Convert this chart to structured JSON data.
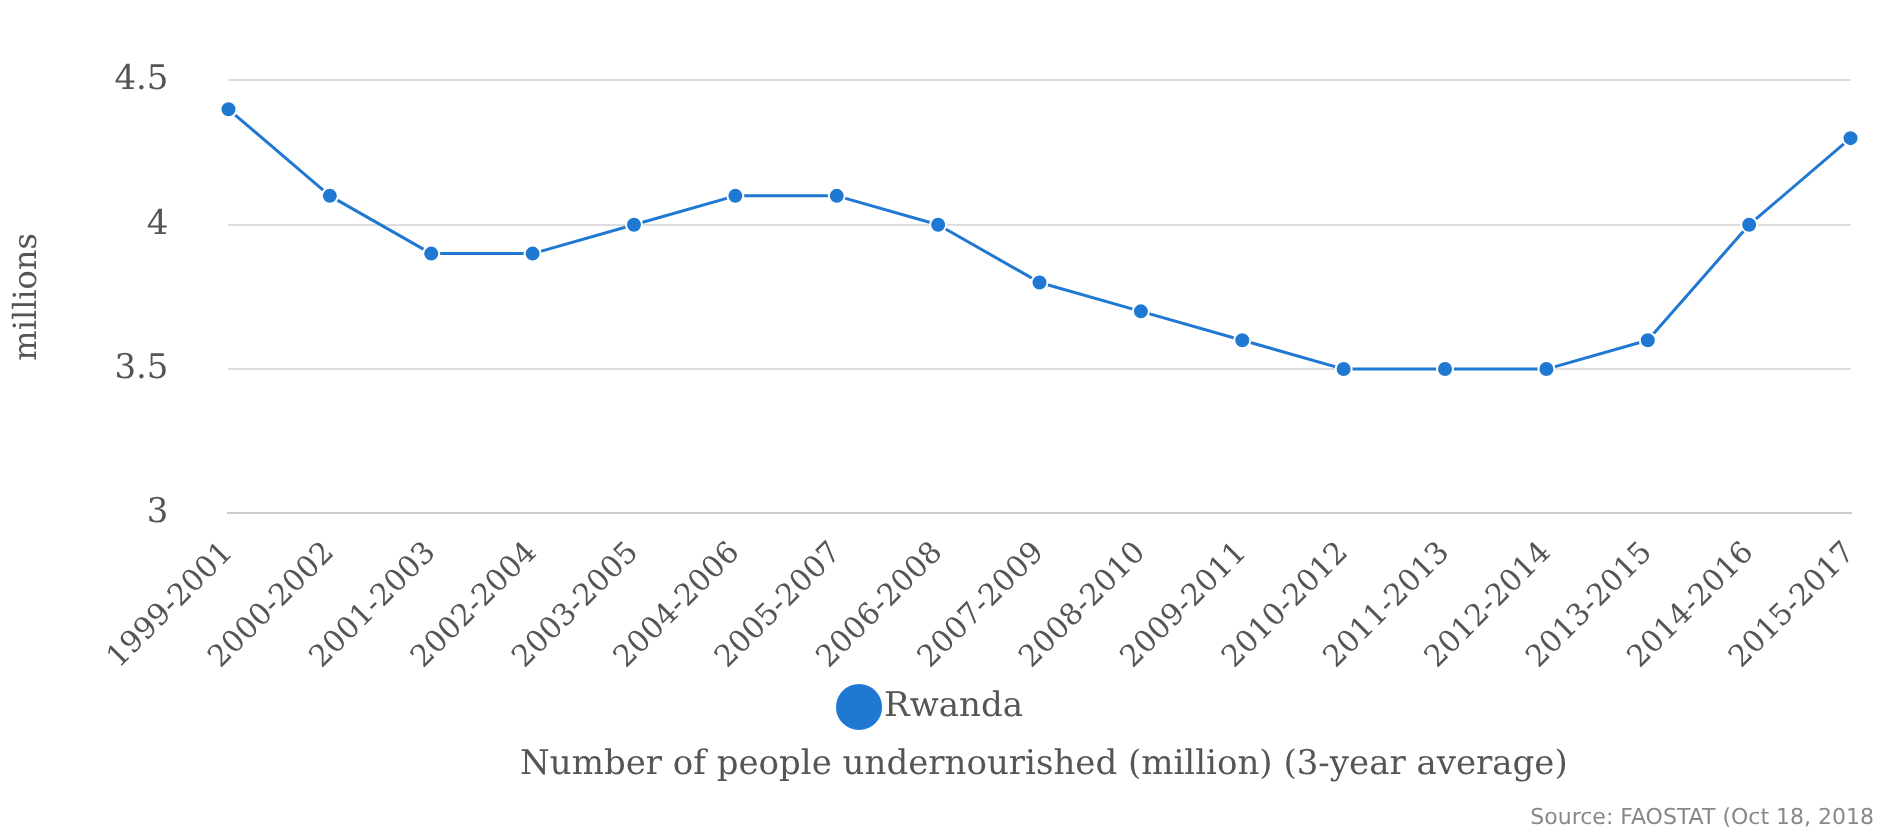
{
  "chart_data": {
    "type": "line",
    "ylabel": "millions",
    "subtitle": "Number of people undernourished (million) (3-year average)",
    "annotations": [
      "Source: FAOSTAT (Oct 18, 2018"
    ],
    "categories": [
      "1999-2001",
      "2000-2002",
      "2001-2003",
      "2002-2004",
      "2003-2005",
      "2004-2006",
      "2005-2007",
      "2006-2008",
      "2007-2009",
      "2008-2010",
      "2009-2011",
      "2010-2012",
      "2011-2013",
      "2012-2014",
      "2013-2015",
      "2014-2016",
      "2015-2017"
    ],
    "series": [
      {
        "name": "Rwanda",
        "color": "#1f78d1",
        "values": [
          4.4,
          4.1,
          3.9,
          3.9,
          4.0,
          4.1,
          4.1,
          4.0,
          3.8,
          3.7,
          3.6,
          3.5,
          3.5,
          3.5,
          3.6,
          4.0,
          4.3
        ]
      }
    ],
    "ylim": [
      3,
      4.5
    ],
    "yticks": [
      3,
      3.5,
      4,
      4.5
    ],
    "grid": "y",
    "legend": "bottom",
    "marker": "circle",
    "line_style": "solid"
  }
}
